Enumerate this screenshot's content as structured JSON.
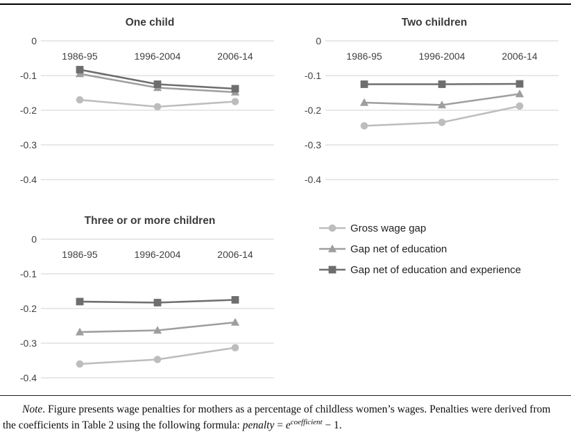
{
  "legend": {
    "items": [
      {
        "label": "Gross wage gap",
        "shape": "circle",
        "color": "#bdbdbd"
      },
      {
        "label": "Gap net of education",
        "shape": "triangle",
        "color": "#9e9e9e"
      },
      {
        "label": "Gap net of education and experience",
        "shape": "square",
        "color": "#6e6e6e"
      }
    ]
  },
  "chart_data": [
    {
      "type": "line",
      "title": "One child",
      "categories": [
        "1986-95",
        "1996-2004",
        "2006-14"
      ],
      "ylim": [
        -0.45,
        0
      ],
      "ytick_labels": [
        "0",
        "-0.1",
        "-0.2",
        "-0.3",
        "-0.4"
      ],
      "ytick_values": [
        0,
        -0.1,
        -0.2,
        -0.3,
        -0.4
      ],
      "grid": true,
      "legend_position": "none",
      "series": [
        {
          "name": "Gross wage gap",
          "marker": "circle",
          "color": "#bdbdbd",
          "values": [
            -0.17,
            -0.19,
            -0.175
          ]
        },
        {
          "name": "Gap net of education",
          "marker": "triangle",
          "color": "#9e9e9e",
          "values": [
            -0.095,
            -0.135,
            -0.148
          ]
        },
        {
          "name": "Gap net of education and experience",
          "marker": "square",
          "color": "#6e6e6e",
          "values": [
            -0.083,
            -0.125,
            -0.138
          ]
        }
      ]
    },
    {
      "type": "line",
      "title": "Two children",
      "categories": [
        "1986-95",
        "1996-2004",
        "2006-14"
      ],
      "ylim": [
        -0.45,
        0
      ],
      "ytick_labels": [
        "0",
        "-0.1",
        "-0.2",
        "-0.3",
        "-0.4"
      ],
      "ytick_values": [
        0,
        -0.1,
        -0.2,
        -0.3,
        -0.4
      ],
      "grid": true,
      "legend_position": "none",
      "series": [
        {
          "name": "Gross wage gap",
          "marker": "circle",
          "color": "#bdbdbd",
          "values": [
            -0.245,
            -0.235,
            -0.188
          ]
        },
        {
          "name": "Gap net of education",
          "marker": "triangle",
          "color": "#9e9e9e",
          "values": [
            -0.178,
            -0.185,
            -0.153
          ]
        },
        {
          "name": "Gap net of education and experience",
          "marker": "square",
          "color": "#6e6e6e",
          "values": [
            -0.125,
            -0.125,
            -0.124
          ]
        }
      ]
    },
    {
      "type": "line",
      "title": "Three or or more children",
      "categories": [
        "1986-95",
        "1996-2004",
        "2006-14"
      ],
      "ylim": [
        -0.45,
        0
      ],
      "ytick_labels": [
        "0",
        "-0.1",
        "-0.2",
        "-0.3",
        "-0.4"
      ],
      "ytick_values": [
        0,
        -0.1,
        -0.2,
        -0.3,
        -0.4
      ],
      "grid": true,
      "legend_position": "none",
      "series": [
        {
          "name": "Gross wage gap",
          "marker": "circle",
          "color": "#bdbdbd",
          "values": [
            -0.36,
            -0.347,
            -0.313
          ]
        },
        {
          "name": "Gap net of education",
          "marker": "triangle",
          "color": "#9e9e9e",
          "values": [
            -0.268,
            -0.263,
            -0.24
          ]
        },
        {
          "name": "Gap net of education and experience",
          "marker": "square",
          "color": "#6e6e6e",
          "values": [
            -0.18,
            -0.183,
            -0.175
          ]
        }
      ]
    }
  ],
  "note": {
    "lead_italic": "Note",
    "line1_rest": ". Figure presents wage penalties for mothers as a percentage of childless women’s wages. Penalties were derived from",
    "line2_pre": "the coefficients in Table 2 using the following formula: ",
    "formula_var": "penalty",
    "formula_eq": " = ",
    "formula_base": "e",
    "formula_sup": "coefficient",
    "formula_tail": " − 1."
  },
  "colors": {
    "gridline": "#d9d9d9",
    "axis_text": "#404040",
    "title_text": "#3b3b3b",
    "rule": "#000000"
  }
}
